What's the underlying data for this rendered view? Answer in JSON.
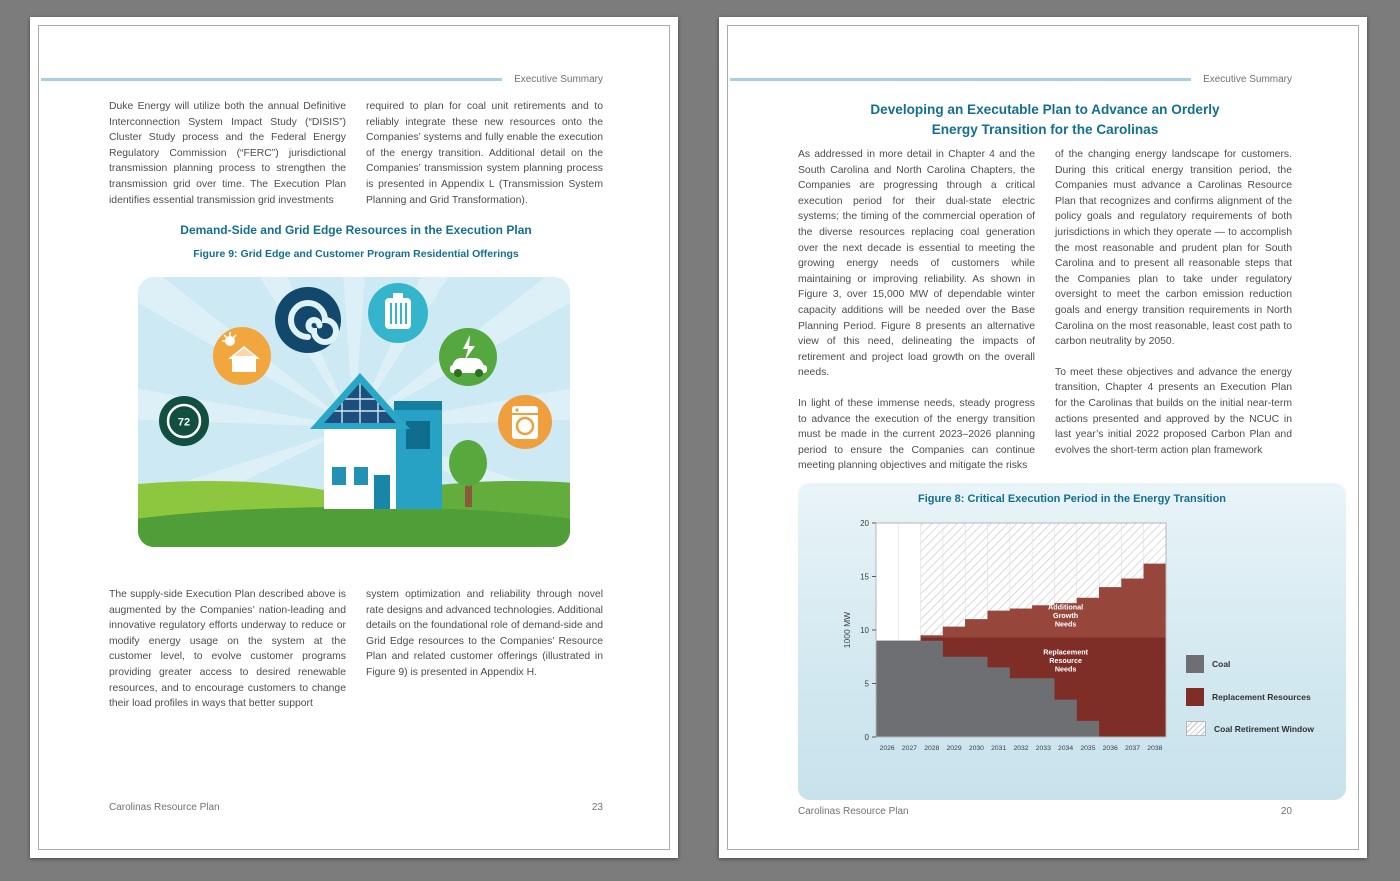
{
  "left_page": {
    "header_label": "Executive Summary",
    "top_cols": [
      "Duke Energy will utilize both the annual Definitive Interconnection System Impact Study (“DISIS”) Cluster Study process and the Federal Energy Regulatory Commission (“FERC”) jurisdictional transmission planning process to strengthen the transmission grid over time. The Execution Plan identifies essential transmission grid investments",
      "required to plan for coal unit retirements and to reliably integrate these new resources onto the Companies’ systems and fully enable the execution of the energy transition. Additional detail on the Companies’ transmission system planning process is presented in Appendix L (Transmission System Planning and Grid Transformation)."
    ],
    "section_heading": "Demand-Side and Grid Edge Resources in the Execution Plan",
    "figure_caption": "Figure 9: Grid Edge and Customer Program Residential Offerings",
    "illustration": {
      "thermostat_value": "72",
      "icons": [
        "solar-home-icon",
        "energy-swirl-icon",
        "battery-storage-icon",
        "ev-charging-icon",
        "thermostat-icon",
        "washing-machine-icon"
      ]
    },
    "bottom_cols": [
      "The supply-side Execution Plan described above is augmented by the Companies’ nation-leading and innovative regulatory efforts underway to reduce or modify energy usage on the system at the customer level, to evolve customer programs providing greater access to desired renewable resources, and to encourage customers to change their load profiles in ways that better support",
      "system optimization and reliability through novel rate designs and advanced technologies. Additional details on the foundational role of demand-side and Grid Edge resources to the Companies’ Resource Plan and related customer offerings (illustrated in Figure 9) is presented in Appendix H."
    ],
    "footer_left": "Carolinas Resource Plan",
    "page_number": "23"
  },
  "right_page": {
    "header_label": "Executive Summary",
    "heading_line1": "Developing an Executable Plan to Advance an Orderly",
    "heading_line2": "Energy Transition for the Carolinas",
    "col1": [
      "As addressed in more detail in Chapter 4 and the South Carolina and North Carolina Chapters, the Companies are progressing through a critical execution period for their dual-state electric systems; the timing of the commercial operation of the diverse resources replacing coal generation over the next decade is essential to meeting the growing energy needs of customers while maintaining or improving reliability. As shown in Figure 3, over 15,000 MW of dependable winter capacity additions will be needed over the Base Planning Period. Figure 8 presents an alternative view of this need, delineating the impacts of retirement and project load growth on the overall needs.",
      "In light of these immense needs, steady progress to advance the execution of the energy transition must be made in the current 2023–2026 planning period to ensure the Companies can continue meeting planning objectives and mitigate the risks"
    ],
    "col2": [
      "of the changing energy landscape for customers. During this critical energy transition period, the Companies must advance a Carolinas Resource Plan that recognizes and confirms alignment of the policy goals and regulatory requirements of both jurisdictions in which they operate — to accomplish the most reasonable and prudent plan for South Carolina and to present all reasonable steps that the Companies plan to take under regulatory oversight to meet the carbon emission reduction goals and energy transition requirements in North Carolina on the most reasonable, least cost path to carbon neutrality by 2050.",
      "To meet these objectives and advance the energy transition, Chapter 4 presents an Execution Plan for the Carolinas that builds on the initial near-term actions presented and approved by the NCUC in last year’s initial 2022 proposed Carbon Plan and evolves the short-term action plan framework"
    ],
    "footer_left": "Carolinas Resource Plan",
    "page_number": "20"
  },
  "chart_data": {
    "type": "area",
    "title": "Figure 8: Critical Execution Period in the Energy Transition",
    "ylabel": "1000 MW",
    "ylim": [
      0,
      20
    ],
    "yticks": [
      0,
      5,
      10,
      15,
      20
    ],
    "years": [
      2026,
      2027,
      2028,
      2029,
      2030,
      2031,
      2032,
      2033,
      2034,
      2035,
      2036,
      2037,
      2038
    ],
    "series": [
      {
        "name": "Coal",
        "color": "#6e6f72",
        "values": [
          9,
          9,
          9,
          7.5,
          7.5,
          6.5,
          5.5,
          5.5,
          3.5,
          1.5,
          0,
          0,
          0
        ]
      },
      {
        "name": "Replacement Resources",
        "color": "#7e2d27",
        "cumulative_total": [
          9,
          9,
          9.5,
          10.3,
          11,
          11.8,
          12,
          12.3,
          12.5,
          13,
          14,
          14.8,
          16.2
        ]
      }
    ],
    "growth_baseline": 9.3,
    "growth_color": "#9a493e",
    "coal_retirement_window": [
      2028,
      2038
    ],
    "annotations": [
      {
        "lines": [
          "Additional",
          "Growth",
          "Needs"
        ],
        "xi": 8,
        "y": 11.9
      },
      {
        "lines": [
          "Replacement",
          "Resource",
          "Needs"
        ],
        "xi": 8,
        "y": 7.7
      }
    ],
    "legend": [
      {
        "label": "Coal",
        "swatch": "coal"
      },
      {
        "label": "Replacement Resources",
        "swatch": "replacement"
      },
      {
        "label": "Coal Retirement Window",
        "swatch": "hatch"
      }
    ]
  }
}
